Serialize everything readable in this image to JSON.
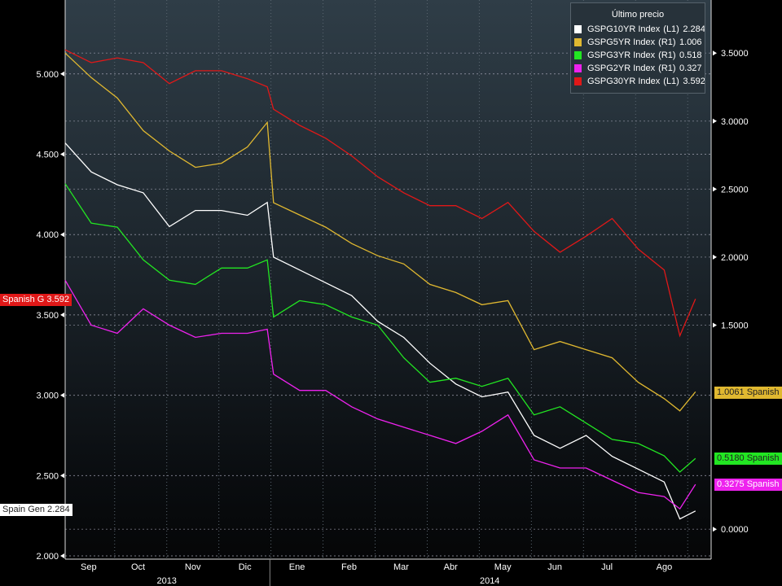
{
  "chart_data": {
    "type": "line",
    "title": "",
    "x_unit": "months since late Aug 2013",
    "x": [
      0,
      0.5,
      1,
      1.5,
      2,
      2.5,
      3,
      3.5,
      3.88,
      4,
      4.5,
      5,
      5.5,
      6,
      6.5,
      7,
      7.5,
      8,
      8.5,
      9,
      9.5,
      10,
      10.5,
      11,
      11.5,
      11.8,
      12.1
    ],
    "xlim": [
      0,
      12.4
    ],
    "month_ticks": [
      {
        "label": "Sep",
        "x": 0.45
      },
      {
        "label": "Oct",
        "x": 1.4
      },
      {
        "label": "Nov",
        "x": 2.45
      },
      {
        "label": "Dic",
        "x": 3.45
      },
      {
        "label": "Ene",
        "x": 4.45
      },
      {
        "label": "Feb",
        "x": 5.45
      },
      {
        "label": "Mar",
        "x": 6.45
      },
      {
        "label": "Abr",
        "x": 7.4
      },
      {
        "label": "May",
        "x": 8.4
      },
      {
        "label": "Jun",
        "x": 9.4
      },
      {
        "label": "Jul",
        "x": 10.4
      },
      {
        "label": "Ago",
        "x": 11.5
      }
    ],
    "year_labels": [
      {
        "label": "2013",
        "x": 1.95
      },
      {
        "label": "2014",
        "x": 8.15
      }
    ],
    "year_separator_x": 3.93,
    "left_axis": {
      "ylim": [
        1.98,
        5.46
      ],
      "ticks": [
        "5.000",
        "4.500",
        "4.000",
        "3.500",
        "3.000",
        "2.500",
        "2.000"
      ]
    },
    "right_axis": {
      "ylim": [
        -0.22,
        3.89
      ],
      "ticks": [
        "3.5000",
        "3.0000",
        "2.5000",
        "2.0000",
        "1.5000",
        "0.0000"
      ]
    },
    "legend": {
      "title": "Último precio",
      "placement": "top-right"
    },
    "series": [
      {
        "name": "GSPG10YR Index",
        "axis": "(L1)",
        "last": "2.284",
        "color": "#ffffff",
        "tag": "Spain Gen 2.284",
        "tag_value": 2.284,
        "values": [
          4.57,
          4.39,
          4.31,
          4.26,
          4.05,
          4.15,
          4.15,
          4.12,
          4.2,
          3.86,
          3.78,
          3.7,
          3.62,
          3.46,
          3.36,
          3.2,
          3.07,
          2.99,
          3.02,
          2.75,
          2.67,
          2.75,
          2.62,
          2.54,
          2.46,
          2.23,
          2.28
        ]
      },
      {
        "name": "GSPG5YR Index",
        "axis": "(R1)",
        "last": "1.006",
        "color": "#e0b830",
        "tag": "1.0061 Spanish G",
        "tag_value": 1.006,
        "values": [
          3.5,
          3.32,
          3.17,
          2.93,
          2.78,
          2.66,
          2.69,
          2.81,
          2.99,
          2.4,
          2.31,
          2.22,
          2.1,
          2.01,
          1.95,
          1.8,
          1.74,
          1.65,
          1.68,
          1.32,
          1.38,
          1.32,
          1.26,
          1.08,
          0.96,
          0.87,
          1.01
        ]
      },
      {
        "name": "GSPG3YR Index",
        "axis": "(R1)",
        "last": "0.518",
        "color": "#22e622",
        "tag": "0.5180 Spanish G",
        "tag_value": 0.518,
        "values": [
          2.54,
          2.25,
          2.22,
          1.98,
          1.83,
          1.8,
          1.92,
          1.92,
          1.98,
          1.56,
          1.68,
          1.65,
          1.56,
          1.5,
          1.26,
          1.08,
          1.11,
          1.05,
          1.11,
          0.84,
          0.9,
          0.78,
          0.66,
          0.63,
          0.54,
          0.42,
          0.52
        ]
      },
      {
        "name": "GSPG2YR Index",
        "axis": "(R1)",
        "last": "0.327",
        "color": "#ee22ee",
        "tag": "0.3275 Spanish G",
        "tag_value": 0.327,
        "values": [
          1.83,
          1.5,
          1.44,
          1.62,
          1.5,
          1.41,
          1.44,
          1.44,
          1.47,
          1.14,
          1.02,
          1.02,
          0.9,
          0.81,
          0.75,
          0.69,
          0.63,
          0.72,
          0.84,
          0.51,
          0.45,
          0.45,
          0.36,
          0.27,
          0.24,
          0.15,
          0.33
        ]
      },
      {
        "name": "GSPG30YR Index",
        "axis": "(L1)",
        "last": "3.592",
        "color": "#e01818",
        "tag": "Spanish G 3.592",
        "tag_value": 3.592,
        "values": [
          5.15,
          5.07,
          5.1,
          5.07,
          4.94,
          5.02,
          5.02,
          4.97,
          4.92,
          4.78,
          4.68,
          4.6,
          4.49,
          4.36,
          4.26,
          4.18,
          4.18,
          4.1,
          4.2,
          4.02,
          3.89,
          3.99,
          4.1,
          3.91,
          3.78,
          3.37,
          3.6
        ]
      }
    ]
  }
}
